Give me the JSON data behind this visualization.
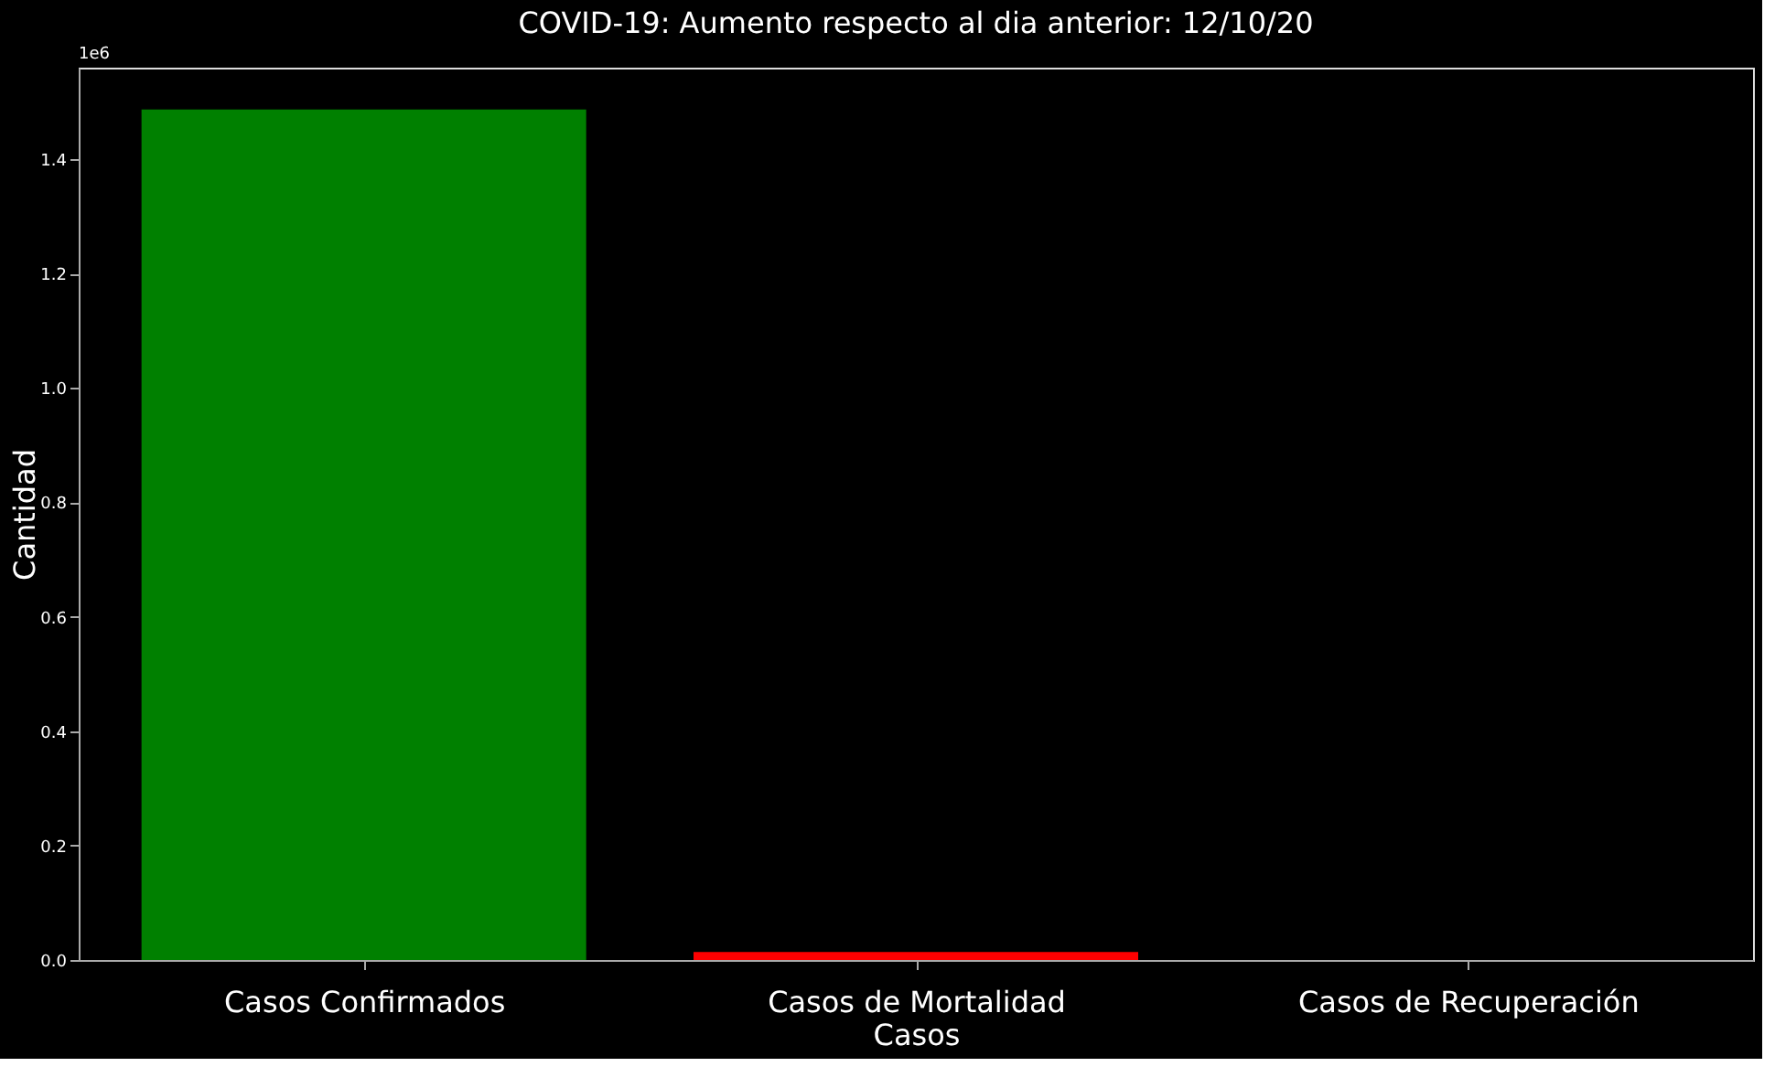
{
  "chart_data": {
    "type": "bar",
    "title": "COVID-19: Aumento respecto al dia anterior: 12/10/20",
    "xlabel": "Casos",
    "ylabel": "Cantidad",
    "categories": [
      "Casos Confirmados",
      "Casos de Mortalidad",
      "Casos de Recuperación"
    ],
    "values": [
      1.487,
      0.014,
      0
    ],
    "colors": [
      "#008000",
      "#ff0000",
      "#0000ff"
    ],
    "ylim": [
      0,
      1.56
    ],
    "yticks": [
      {
        "value": 0,
        "label": "0.0"
      },
      0.2,
      0.4,
      0.6,
      0.8,
      {
        "value": 1,
        "label": "1.0"
      },
      1.2,
      1.4
    ],
    "annotations": [
      "1e6"
    ],
    "grid": false,
    "legend": false
  }
}
